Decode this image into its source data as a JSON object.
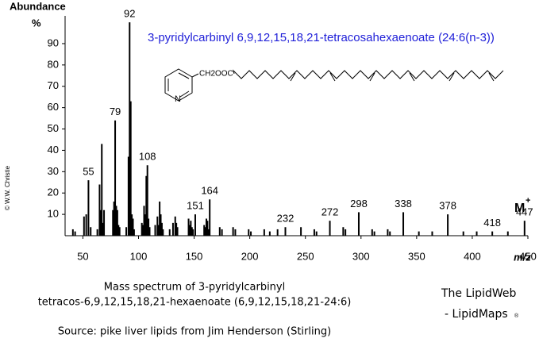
{
  "chart_data": {
    "type": "stick",
    "title": "3-pyridylcarbinyl 6,9,12,15,18,21-tetracosahexaenoate (24:6(n-3))",
    "y_label": "Abundance",
    "y_unit": "%",
    "x_label": "m/z",
    "molecular_ion_label": "M",
    "molecular_ion_sup": "+",
    "structure": {
      "group": "CH2OOC",
      "ring_atom": "N"
    },
    "caption": [
      "Mass spectrum of 3-pyridylcarbinyl",
      "tetracos-6,9,12,15,18,21-hexaenoate (6,9,12,15,18,21-24:6)"
    ],
    "brand": [
      "The LipidWeb",
      "- LipidMaps",
      "®"
    ],
    "source": "Source: pike liver lipids from Jim Henderson (Stirling)",
    "copyright": "© W.W. Christie",
    "color": "#000000",
    "labeled_peaks": {
      "x": [
        55,
        79,
        92,
        108,
        151,
        164,
        232,
        272,
        298,
        338,
        378,
        418,
        447
      ],
      "values": [
        26,
        54,
        100,
        33,
        10,
        17,
        4,
        7,
        11,
        11,
        10,
        2,
        7
      ]
    },
    "peaks": {
      "x": [
        41,
        43,
        51,
        53,
        57,
        63,
        65,
        66,
        67,
        68,
        69,
        77,
        78,
        80,
        81,
        82,
        83,
        89,
        91,
        93,
        94,
        95,
        96,
        103,
        104,
        105,
        106,
        107,
        109,
        110,
        115,
        117,
        118,
        119,
        120,
        121,
        122,
        128,
        131,
        133,
        134,
        135,
        145,
        146,
        147,
        148,
        149,
        159,
        160,
        161,
        162,
        163,
        173,
        175,
        185,
        187,
        199,
        201,
        213,
        218,
        225,
        246,
        258,
        260,
        284,
        286,
        310,
        312,
        324,
        326,
        352,
        364,
        392,
        404,
        432
      ],
      "values": [
        3,
        2,
        9,
        10,
        4,
        3,
        24,
        12,
        43,
        6,
        12,
        12,
        16,
        14,
        12,
        5,
        4,
        4,
        37,
        63,
        10,
        8,
        3,
        6,
        5,
        14,
        10,
        28,
        8,
        4,
        5,
        9,
        5,
        16,
        10,
        6,
        3,
        3,
        6,
        9,
        6,
        4,
        8,
        5,
        7,
        4,
        3,
        5,
        4,
        8,
        7,
        3,
        4,
        3,
        4,
        3,
        3,
        2,
        3,
        2,
        3,
        4,
        3,
        2,
        4,
        3,
        3,
        2,
        3,
        2,
        2,
        2,
        2,
        2,
        2
      ]
    },
    "xlim": [
      34,
      450
    ],
    "ylim": [
      0,
      103
    ],
    "xticks": [
      50,
      100,
      150,
      200,
      250,
      300,
      350,
      400,
      450
    ],
    "yticks": [
      10,
      20,
      30,
      40,
      50,
      60,
      70,
      80,
      90
    ]
  }
}
